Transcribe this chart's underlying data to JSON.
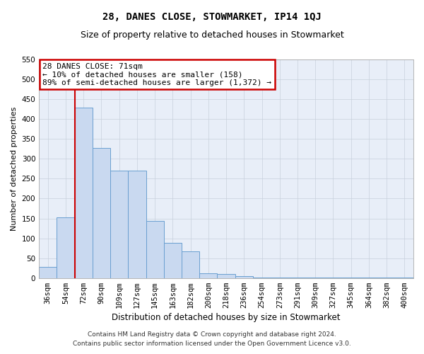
{
  "title": "28, DANES CLOSE, STOWMARKET, IP14 1QJ",
  "subtitle": "Size of property relative to detached houses in Stowmarket",
  "xlabel": "Distribution of detached houses by size in Stowmarket",
  "ylabel": "Number of detached properties",
  "categories": [
    "36sqm",
    "54sqm",
    "72sqm",
    "90sqm",
    "109sqm",
    "127sqm",
    "145sqm",
    "163sqm",
    "182sqm",
    "200sqm",
    "218sqm",
    "236sqm",
    "254sqm",
    "273sqm",
    "291sqm",
    "309sqm",
    "327sqm",
    "345sqm",
    "364sqm",
    "382sqm",
    "400sqm"
  ],
  "values": [
    28,
    152,
    428,
    328,
    270,
    270,
    143,
    88,
    68,
    12,
    10,
    5,
    1,
    1,
    1,
    1,
    1,
    1,
    1,
    1,
    1
  ],
  "bar_color": "#c9d9f0",
  "bar_edge_color": "#6a9fd0",
  "property_line_color": "#cc0000",
  "property_line_x": 1.5,
  "annotation_line1": "28 DANES CLOSE: 71sqm",
  "annotation_line2": "← 10% of detached houses are smaller (158)",
  "annotation_line3": "89% of semi-detached houses are larger (1,372) →",
  "annotation_box_color": "#ffffff",
  "annotation_box_edge_color": "#cc0000",
  "ylim": [
    0,
    550
  ],
  "yticks": [
    0,
    50,
    100,
    150,
    200,
    250,
    300,
    350,
    400,
    450,
    500,
    550
  ],
  "plot_bg_color": "#e8eef8",
  "background_color": "#ffffff",
  "grid_color": "#c8d0dc",
  "footer_line1": "Contains HM Land Registry data © Crown copyright and database right 2024.",
  "footer_line2": "Contains public sector information licensed under the Open Government Licence v3.0.",
  "title_fontsize": 10,
  "subtitle_fontsize": 9,
  "xlabel_fontsize": 8.5,
  "ylabel_fontsize": 8,
  "tick_fontsize": 7.5,
  "footer_fontsize": 6.5,
  "annotation_fontsize": 8
}
